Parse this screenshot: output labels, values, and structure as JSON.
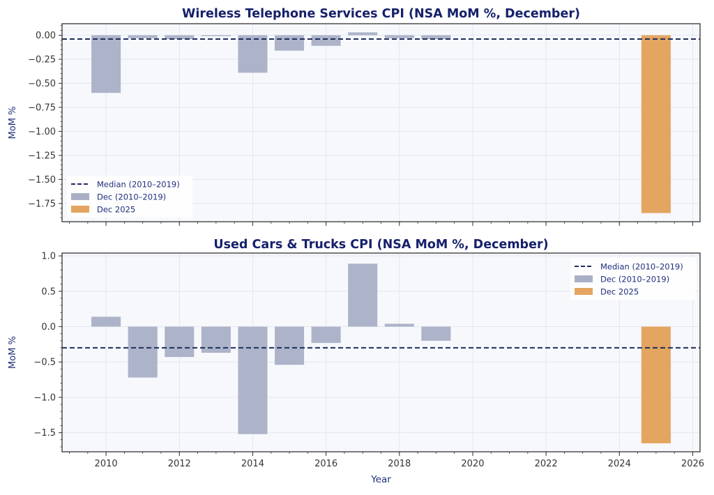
{
  "colors": {
    "historical_bar": "#a9b0c6",
    "current_bar": "#e3a55f",
    "median_line": "#1f2d5c",
    "plot_bg": "#f6f8fb",
    "grid": "#e3e6ef",
    "title": "#16206a"
  },
  "chart_data": [
    {
      "type": "bar",
      "title": "Wireless Telephone Services CPI (NSA MoM %, December)",
      "xlabel": "",
      "ylabel": "MoM %",
      "xlim": [
        2008.8,
        2026.2
      ],
      "ylim": [
        -1.94,
        0.12
      ],
      "grid": true,
      "x_ticks": [
        2010,
        2012,
        2014,
        2016,
        2018,
        2020,
        2022,
        2024,
        2026
      ],
      "x_tick_labels_visible": false,
      "y_ticks": [
        0.0,
        -0.25,
        -0.5,
        -0.75,
        -1.0,
        -1.25,
        -1.5,
        -1.75
      ],
      "y_tick_labels": [
        "0.00",
        "−0.25",
        "−0.50",
        "−0.75",
        "−1.00",
        "−1.25",
        "−1.50",
        "−1.75"
      ],
      "series": [
        {
          "name": "Dec (2010–2019)",
          "x": [
            2010,
            2011,
            2012,
            2013,
            2014,
            2015,
            2016,
            2017,
            2018,
            2019
          ],
          "values": [
            -0.6,
            -0.03,
            -0.04,
            -0.01,
            -0.39,
            -0.16,
            -0.11,
            0.03,
            -0.03,
            -0.04
          ]
        },
        {
          "name": "Dec 2025",
          "x": [
            2025
          ],
          "values": [
            -1.85
          ]
        }
      ],
      "median": {
        "name": "Median (2010–2019)",
        "value": -0.04
      },
      "legend": {
        "placement": "lower-left",
        "entries": [
          "Median (2010–2019)",
          "Dec (2010–2019)",
          "Dec 2025"
        ]
      }
    },
    {
      "type": "bar",
      "title": "Used Cars & Trucks CPI (NSA MoM %, December)",
      "xlabel": "Year",
      "ylabel": "MoM %",
      "xlim": [
        2008.8,
        2026.2
      ],
      "ylim": [
        -1.77,
        1.04
      ],
      "grid": true,
      "x_ticks": [
        2010,
        2012,
        2014,
        2016,
        2018,
        2020,
        2022,
        2024,
        2026
      ],
      "x_tick_labels": [
        "2010",
        "2012",
        "2014",
        "2016",
        "2018",
        "2020",
        "2022",
        "2024",
        "2026"
      ],
      "y_ticks": [
        1.0,
        0.5,
        0.0,
        -0.5,
        -1.0,
        -1.5
      ],
      "y_tick_labels": [
        "1.0",
        "0.5",
        "0.0",
        "−0.5",
        "−1.0",
        "−1.5"
      ],
      "series": [
        {
          "name": "Dec (2010–2019)",
          "x": [
            2010,
            2011,
            2012,
            2013,
            2014,
            2015,
            2016,
            2017,
            2018,
            2019
          ],
          "values": [
            0.14,
            -0.72,
            -0.43,
            -0.37,
            -1.52,
            -0.54,
            -0.23,
            0.89,
            0.04,
            -0.2
          ]
        },
        {
          "name": "Dec 2025",
          "x": [
            2025
          ],
          "values": [
            -1.65
          ]
        }
      ],
      "median": {
        "name": "Median (2010–2019)",
        "value": -0.3
      },
      "legend": {
        "placement": "upper-right",
        "entries": [
          "Median (2010–2019)",
          "Dec (2010–2019)",
          "Dec 2025"
        ]
      }
    }
  ]
}
